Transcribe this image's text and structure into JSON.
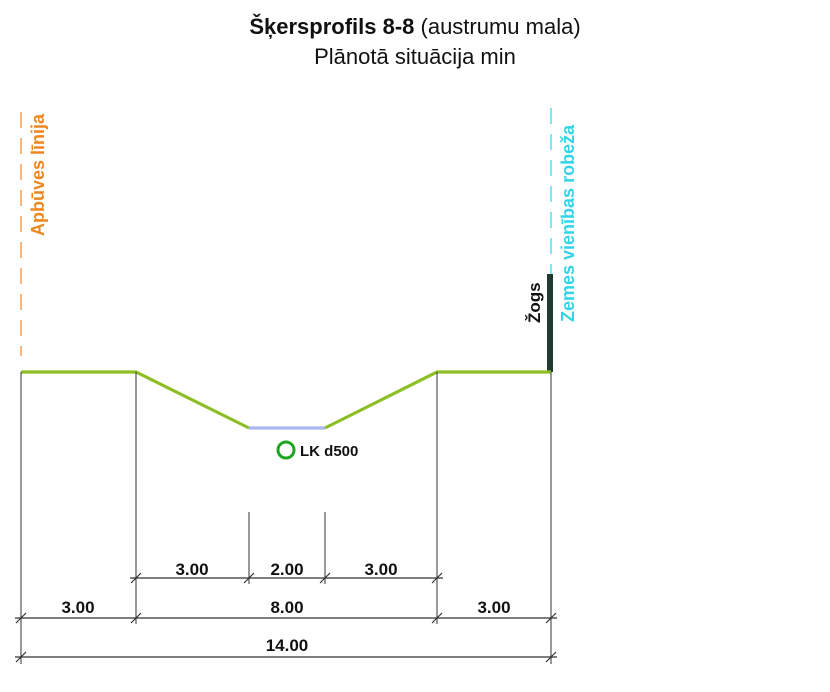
{
  "title": {
    "bold_part": "Šķersprofils 8-8",
    "normal_part": " (austrumu mala)",
    "subtitle": "Plānotā situācija min"
  },
  "labels": {
    "left_boundary": "Apbūves līnija",
    "right_boundary": "Zemes vienības robeža",
    "fence": "Žogs",
    "drain": "LK d500"
  },
  "dimensions": {
    "inner_left": "3.00",
    "inner_middle": "2.00",
    "inner_right": "3.00",
    "outer_left": "3.00",
    "outer_middle": "8.00",
    "outer_right": "3.00",
    "total": "14.00"
  },
  "colors": {
    "ground": "#8cbf26",
    "ditch_bottom": "#a9b8f0",
    "left_line": "#f0871e",
    "right_line": "#33d4e8",
    "drain_circle": "#1fa51f",
    "fence": "#1f3a2e",
    "dim_lines": "#222222"
  }
}
